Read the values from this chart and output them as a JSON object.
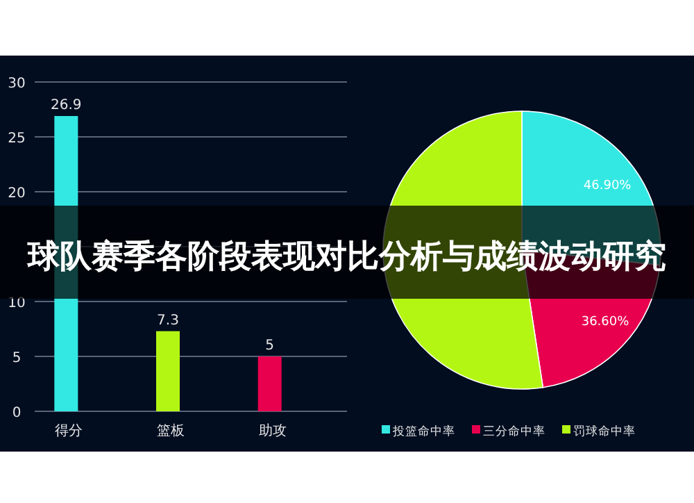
{
  "chart_data": [
    {
      "type": "bar",
      "title": "球队赛季各阶段表现对比分析与成绩波动研究",
      "categories": [
        "得分",
        "篮板",
        "助攻"
      ],
      "values": [
        26.9,
        7.3,
        5
      ],
      "colors": [
        "#33e8e3",
        "#b3f614",
        "#e8004f"
      ],
      "ylim": [
        0,
        30
      ],
      "yticks": [
        0,
        5,
        10,
        {
          "value": 15,
          "label": null
        },
        20,
        25,
        30
      ],
      "grid": "y",
      "data_labels": true
    },
    {
      "type": "pie",
      "categories": [
        "投篮命中率",
        "三分命中率",
        "罚球命中率"
      ],
      "values": [
        46.9,
        36.6,
        92
      ],
      "colors": [
        "#33e8e3",
        "#e8004f",
        "#b3f614"
      ],
      "value_labels": [
        "46.90%",
        "36.60%",
        null
      ],
      "legend": "bottom"
    }
  ]
}
